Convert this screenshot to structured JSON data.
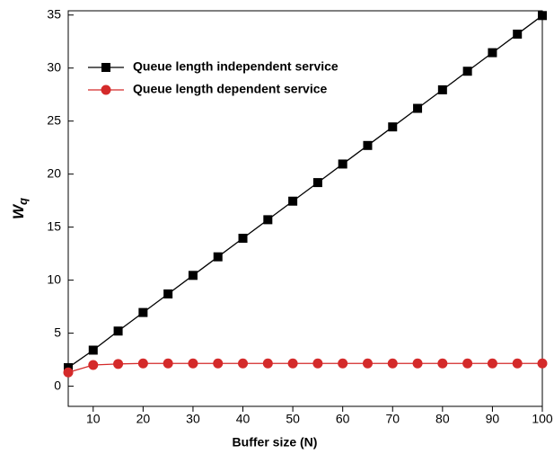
{
  "chart_data": {
    "type": "line",
    "xlabel": "Buffer size (N)",
    "ylabel": {
      "main": "W",
      "sub": "q"
    },
    "x": [
      5,
      10,
      15,
      20,
      25,
      30,
      35,
      40,
      45,
      50,
      55,
      60,
      65,
      70,
      75,
      80,
      85,
      90,
      95,
      100
    ],
    "series": [
      {
        "name": "Queue length independent service",
        "color": "#000000",
        "marker": "square",
        "values": [
          1.75,
          3.4,
          5.2,
          6.95,
          8.7,
          10.45,
          12.2,
          13.95,
          15.7,
          17.45,
          19.2,
          20.95,
          22.7,
          24.45,
          26.2,
          27.95,
          29.7,
          31.45,
          33.2,
          34.95
        ]
      },
      {
        "name": "Queue length dependent service",
        "color": "#d42a2a",
        "marker": "circle",
        "values": [
          1.3,
          2.0,
          2.1,
          2.15,
          2.15,
          2.15,
          2.15,
          2.15,
          2.15,
          2.15,
          2.15,
          2.15,
          2.15,
          2.15,
          2.15,
          2.15,
          2.15,
          2.15,
          2.15,
          2.15
        ]
      }
    ],
    "xlim": [
      5,
      100
    ],
    "xticks": [
      10,
      20,
      30,
      40,
      50,
      60,
      70,
      80,
      90,
      100
    ],
    "ylim": [
      -1.9,
      35.4
    ],
    "yticks": [
      0,
      5,
      10,
      15,
      20,
      25,
      30,
      35
    ],
    "grid": false,
    "legend": "upper left"
  }
}
